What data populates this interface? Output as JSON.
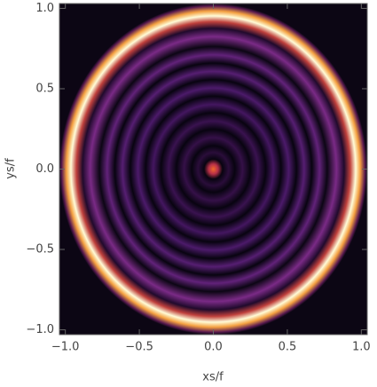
{
  "chart_data": {
    "type": "density",
    "x_label": "xs/f",
    "y_label": "ys/f",
    "xlim": [
      -1.04,
      1.04
    ],
    "ylim": [
      -1.03,
      1.03
    ],
    "xticks": [
      {
        "value": -1,
        "label": "−1.0"
      },
      {
        "value": -0.5,
        "label": "−0.5"
      },
      {
        "value": 0,
        "label": "0.0"
      },
      0.5,
      {
        "value": 1,
        "label": "1.0"
      }
    ],
    "yticks": [
      {
        "value": -1,
        "label": "−1.0"
      },
      {
        "value": -0.5,
        "label": "−0.5"
      },
      {
        "value": 0,
        "label": "0.0"
      },
      0.5,
      {
        "value": 1,
        "label": "1.0"
      }
    ]
  }
}
